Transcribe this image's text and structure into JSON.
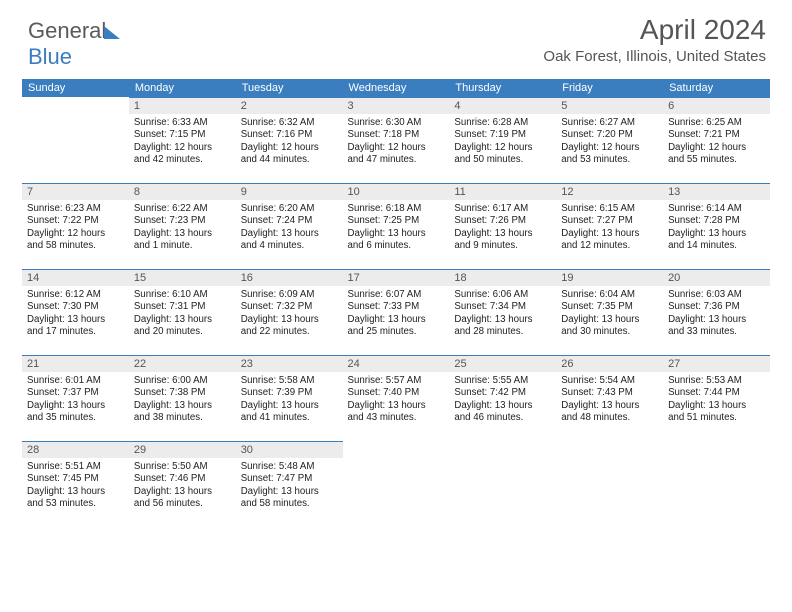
{
  "brand": {
    "part1": "General",
    "part2": "Blue"
  },
  "title": "April 2024",
  "location": "Oak Forest, Illinois, United States",
  "colors": {
    "accent": "#3a7ebf",
    "daynum_bg": "#ececec",
    "text": "#222",
    "muted": "#555"
  },
  "day_headers": [
    "Sunday",
    "Monday",
    "Tuesday",
    "Wednesday",
    "Thursday",
    "Friday",
    "Saturday"
  ],
  "weeks": [
    [
      null,
      {
        "n": "1",
        "sr": "Sunrise: 6:33 AM",
        "ss": "Sunset: 7:15 PM",
        "d1": "Daylight: 12 hours",
        "d2": "and 42 minutes."
      },
      {
        "n": "2",
        "sr": "Sunrise: 6:32 AM",
        "ss": "Sunset: 7:16 PM",
        "d1": "Daylight: 12 hours",
        "d2": "and 44 minutes."
      },
      {
        "n": "3",
        "sr": "Sunrise: 6:30 AM",
        "ss": "Sunset: 7:18 PM",
        "d1": "Daylight: 12 hours",
        "d2": "and 47 minutes."
      },
      {
        "n": "4",
        "sr": "Sunrise: 6:28 AM",
        "ss": "Sunset: 7:19 PM",
        "d1": "Daylight: 12 hours",
        "d2": "and 50 minutes."
      },
      {
        "n": "5",
        "sr": "Sunrise: 6:27 AM",
        "ss": "Sunset: 7:20 PM",
        "d1": "Daylight: 12 hours",
        "d2": "and 53 minutes."
      },
      {
        "n": "6",
        "sr": "Sunrise: 6:25 AM",
        "ss": "Sunset: 7:21 PM",
        "d1": "Daylight: 12 hours",
        "d2": "and 55 minutes."
      }
    ],
    [
      {
        "n": "7",
        "sr": "Sunrise: 6:23 AM",
        "ss": "Sunset: 7:22 PM",
        "d1": "Daylight: 12 hours",
        "d2": "and 58 minutes."
      },
      {
        "n": "8",
        "sr": "Sunrise: 6:22 AM",
        "ss": "Sunset: 7:23 PM",
        "d1": "Daylight: 13 hours",
        "d2": "and 1 minute."
      },
      {
        "n": "9",
        "sr": "Sunrise: 6:20 AM",
        "ss": "Sunset: 7:24 PM",
        "d1": "Daylight: 13 hours",
        "d2": "and 4 minutes."
      },
      {
        "n": "10",
        "sr": "Sunrise: 6:18 AM",
        "ss": "Sunset: 7:25 PM",
        "d1": "Daylight: 13 hours",
        "d2": "and 6 minutes."
      },
      {
        "n": "11",
        "sr": "Sunrise: 6:17 AM",
        "ss": "Sunset: 7:26 PM",
        "d1": "Daylight: 13 hours",
        "d2": "and 9 minutes."
      },
      {
        "n": "12",
        "sr": "Sunrise: 6:15 AM",
        "ss": "Sunset: 7:27 PM",
        "d1": "Daylight: 13 hours",
        "d2": "and 12 minutes."
      },
      {
        "n": "13",
        "sr": "Sunrise: 6:14 AM",
        "ss": "Sunset: 7:28 PM",
        "d1": "Daylight: 13 hours",
        "d2": "and 14 minutes."
      }
    ],
    [
      {
        "n": "14",
        "sr": "Sunrise: 6:12 AM",
        "ss": "Sunset: 7:30 PM",
        "d1": "Daylight: 13 hours",
        "d2": "and 17 minutes."
      },
      {
        "n": "15",
        "sr": "Sunrise: 6:10 AM",
        "ss": "Sunset: 7:31 PM",
        "d1": "Daylight: 13 hours",
        "d2": "and 20 minutes."
      },
      {
        "n": "16",
        "sr": "Sunrise: 6:09 AM",
        "ss": "Sunset: 7:32 PM",
        "d1": "Daylight: 13 hours",
        "d2": "and 22 minutes."
      },
      {
        "n": "17",
        "sr": "Sunrise: 6:07 AM",
        "ss": "Sunset: 7:33 PM",
        "d1": "Daylight: 13 hours",
        "d2": "and 25 minutes."
      },
      {
        "n": "18",
        "sr": "Sunrise: 6:06 AM",
        "ss": "Sunset: 7:34 PM",
        "d1": "Daylight: 13 hours",
        "d2": "and 28 minutes."
      },
      {
        "n": "19",
        "sr": "Sunrise: 6:04 AM",
        "ss": "Sunset: 7:35 PM",
        "d1": "Daylight: 13 hours",
        "d2": "and 30 minutes."
      },
      {
        "n": "20",
        "sr": "Sunrise: 6:03 AM",
        "ss": "Sunset: 7:36 PM",
        "d1": "Daylight: 13 hours",
        "d2": "and 33 minutes."
      }
    ],
    [
      {
        "n": "21",
        "sr": "Sunrise: 6:01 AM",
        "ss": "Sunset: 7:37 PM",
        "d1": "Daylight: 13 hours",
        "d2": "and 35 minutes."
      },
      {
        "n": "22",
        "sr": "Sunrise: 6:00 AM",
        "ss": "Sunset: 7:38 PM",
        "d1": "Daylight: 13 hours",
        "d2": "and 38 minutes."
      },
      {
        "n": "23",
        "sr": "Sunrise: 5:58 AM",
        "ss": "Sunset: 7:39 PM",
        "d1": "Daylight: 13 hours",
        "d2": "and 41 minutes."
      },
      {
        "n": "24",
        "sr": "Sunrise: 5:57 AM",
        "ss": "Sunset: 7:40 PM",
        "d1": "Daylight: 13 hours",
        "d2": "and 43 minutes."
      },
      {
        "n": "25",
        "sr": "Sunrise: 5:55 AM",
        "ss": "Sunset: 7:42 PM",
        "d1": "Daylight: 13 hours",
        "d2": "and 46 minutes."
      },
      {
        "n": "26",
        "sr": "Sunrise: 5:54 AM",
        "ss": "Sunset: 7:43 PM",
        "d1": "Daylight: 13 hours",
        "d2": "and 48 minutes."
      },
      {
        "n": "27",
        "sr": "Sunrise: 5:53 AM",
        "ss": "Sunset: 7:44 PM",
        "d1": "Daylight: 13 hours",
        "d2": "and 51 minutes."
      }
    ],
    [
      {
        "n": "28",
        "sr": "Sunrise: 5:51 AM",
        "ss": "Sunset: 7:45 PM",
        "d1": "Daylight: 13 hours",
        "d2": "and 53 minutes."
      },
      {
        "n": "29",
        "sr": "Sunrise: 5:50 AM",
        "ss": "Sunset: 7:46 PM",
        "d1": "Daylight: 13 hours",
        "d2": "and 56 minutes."
      },
      {
        "n": "30",
        "sr": "Sunrise: 5:48 AM",
        "ss": "Sunset: 7:47 PM",
        "d1": "Daylight: 13 hours",
        "d2": "and 58 minutes."
      },
      null,
      null,
      null,
      null
    ]
  ]
}
